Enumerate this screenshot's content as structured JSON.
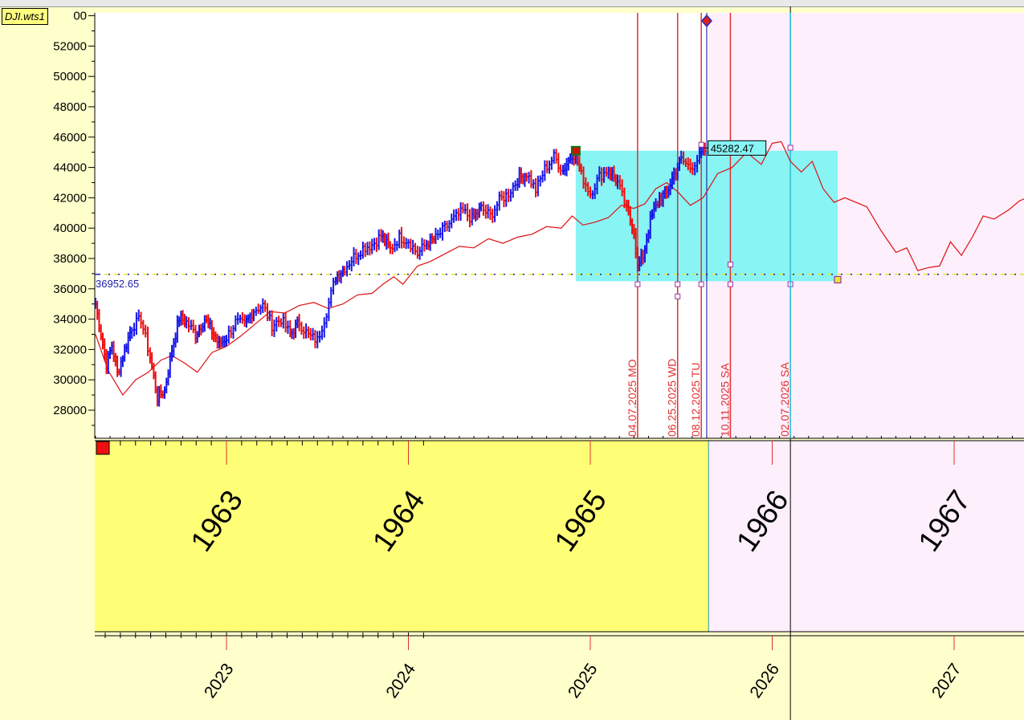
{
  "ticker_label": "DJI.wts1",
  "colors": {
    "up_bar": "#1515E8",
    "down_bar": "#EE0A0A",
    "projection_line": "#E01010",
    "highlight_box": "#88F4F4",
    "past_band": "#FFFF77",
    "future_zone": "#FDEFFB",
    "cycle_line": "#E03030",
    "reference_line": "#1E1EAA",
    "today_line": "#22D0E8"
  },
  "chart_data": {
    "type": "line",
    "title": "",
    "xlabel": "",
    "ylabel": "",
    "x_range": [
      2022.28,
      2027.4
    ],
    "ylim": [
      26200,
      53800
    ],
    "y_ticks": [
      28000,
      30000,
      32000,
      34000,
      36000,
      38000,
      40000,
      42000,
      44000,
      46000,
      48000,
      50000,
      52000
    ],
    "y_top_tick_text": "00",
    "grid": false,
    "legend": "none",
    "years_bottom": [
      2023,
      2024,
      2025,
      2026,
      2027
    ],
    "years_middle": [
      {
        "label": "1963",
        "at": 2023
      },
      {
        "label": "1964",
        "at": 2024
      },
      {
        "label": "1965",
        "at": 2025
      },
      {
        "label": "1966",
        "at": 2026
      },
      {
        "label": "1967",
        "at": 2027
      }
    ],
    "reference_level": {
      "value": 36952.65,
      "label": "36952.65"
    },
    "last_price": {
      "value": 45282.47,
      "label": "45282.47",
      "at": 2025.63
    },
    "highlight_box": {
      "x": [
        2024.92,
        2026.36
      ],
      "y": [
        36500,
        45100
      ]
    },
    "cycle_dates": [
      {
        "label": "04.07.2025 MO",
        "at": 2025.26
      },
      {
        "label": "06.25.2025 WD",
        "at": 2025.48
      },
      {
        "label": "08.12.2025 TU",
        "at": 2025.61
      },
      {
        "label": "10.11.2025 SA",
        "at": 2025.77
      },
      {
        "label": "02.07.2026 SA",
        "at": 2026.1
      }
    ],
    "today": 2025.64,
    "future_start": 2025.65,
    "cursor": 2026.1,
    "price_series": {
      "name": "",
      "x": [
        2022.28,
        2022.31,
        2022.34,
        2022.37,
        2022.4,
        2022.44,
        2022.48,
        2022.53,
        2022.58,
        2022.62,
        2022.66,
        2022.7,
        2022.74,
        2022.78,
        2022.83,
        2022.88,
        2022.92,
        2022.96,
        2023.0,
        2023.05,
        2023.1,
        2023.15,
        2023.2,
        2023.25,
        2023.3,
        2023.35,
        2023.4,
        2023.45,
        2023.5,
        2023.55,
        2023.6,
        2023.65,
        2023.7,
        2023.75,
        2023.8,
        2023.85,
        2023.9,
        2023.95,
        2024.0,
        2024.05,
        2024.1,
        2024.15,
        2024.2,
        2024.25,
        2024.3,
        2024.35,
        2024.4,
        2024.45,
        2024.5,
        2024.55,
        2024.6,
        2024.65,
        2024.7,
        2024.75,
        2024.8,
        2024.85,
        2024.9,
        2024.92,
        2024.95,
        2025.0,
        2025.05,
        2025.1,
        2025.15,
        2025.2,
        2025.24,
        2025.26,
        2025.29,
        2025.33,
        2025.38,
        2025.42,
        2025.46,
        2025.5,
        2025.55,
        2025.6,
        2025.64
      ],
      "y": [
        35000,
        33000,
        31000,
        32300,
        30400,
        32000,
        33500,
        34000,
        31500,
        28800,
        29300,
        32000,
        34100,
        33800,
        33000,
        34000,
        33200,
        32300,
        32800,
        33800,
        33600,
        34600,
        34900,
        33600,
        34000,
        33000,
        33800,
        32900,
        32600,
        34500,
        36800,
        37400,
        38100,
        38700,
        38900,
        39500,
        38600,
        39400,
        39200,
        38300,
        39000,
        39300,
        40000,
        40600,
        41100,
        40600,
        41300,
        40800,
        41800,
        42300,
        43200,
        43600,
        42500,
        43900,
        44700,
        43800,
        44900,
        44800,
        43500,
        42300,
        43400,
        43900,
        43000,
        41200,
        39800,
        37400,
        38200,
        40500,
        42000,
        42300,
        43600,
        44500,
        44000,
        44700,
        45282.47
      ]
    },
    "projection_series": {
      "name": "",
      "x": [
        2022.28,
        2022.35,
        2022.43,
        2022.5,
        2022.57,
        2022.64,
        2022.7,
        2022.77,
        2022.84,
        2022.92,
        2023.0,
        2023.08,
        2023.16,
        2023.24,
        2023.32,
        2023.4,
        2023.48,
        2023.56,
        2023.64,
        2023.72,
        2023.8,
        2023.86,
        2023.92,
        2023.97,
        2024.05,
        2024.12,
        2024.2,
        2024.28,
        2024.36,
        2024.44,
        2024.52,
        2024.6,
        2024.68,
        2024.76,
        2024.84,
        2024.9,
        2024.96,
        2025.03,
        2025.1,
        2025.17,
        2025.24,
        2025.3,
        2025.36,
        2025.42,
        2025.48,
        2025.55,
        2025.62,
        2025.7,
        2025.78,
        2025.86,
        2025.94,
        2026.0,
        2026.05,
        2026.1,
        2026.16,
        2026.22,
        2026.28,
        2026.34,
        2026.4,
        2026.46,
        2026.52,
        2026.6,
        2026.68,
        2026.74,
        2026.8,
        2026.86,
        2026.92,
        2026.98,
        2027.04,
        2027.1,
        2027.16,
        2027.22,
        2027.3,
        2027.36,
        2027.4
      ],
      "y": [
        33000,
        30600,
        29000,
        30000,
        30500,
        31300,
        31600,
        31100,
        30500,
        31800,
        32200,
        32900,
        33700,
        34500,
        34400,
        34900,
        35100,
        34700,
        35000,
        35600,
        35700,
        36300,
        36800,
        36300,
        37500,
        37800,
        38300,
        38800,
        38700,
        39300,
        39000,
        39400,
        39600,
        40100,
        40000,
        40800,
        40200,
        40400,
        40700,
        41500,
        41300,
        41600,
        42600,
        43000,
        42400,
        41500,
        42000,
        43600,
        44000,
        45000,
        44200,
        45600,
        45700,
        44400,
        43700,
        44400,
        42600,
        41700,
        42000,
        41700,
        41400,
        39800,
        38400,
        38700,
        37200,
        37400,
        37500,
        39100,
        38200,
        39400,
        40800,
        40600,
        41200,
        41800,
        42000
      ]
    }
  }
}
